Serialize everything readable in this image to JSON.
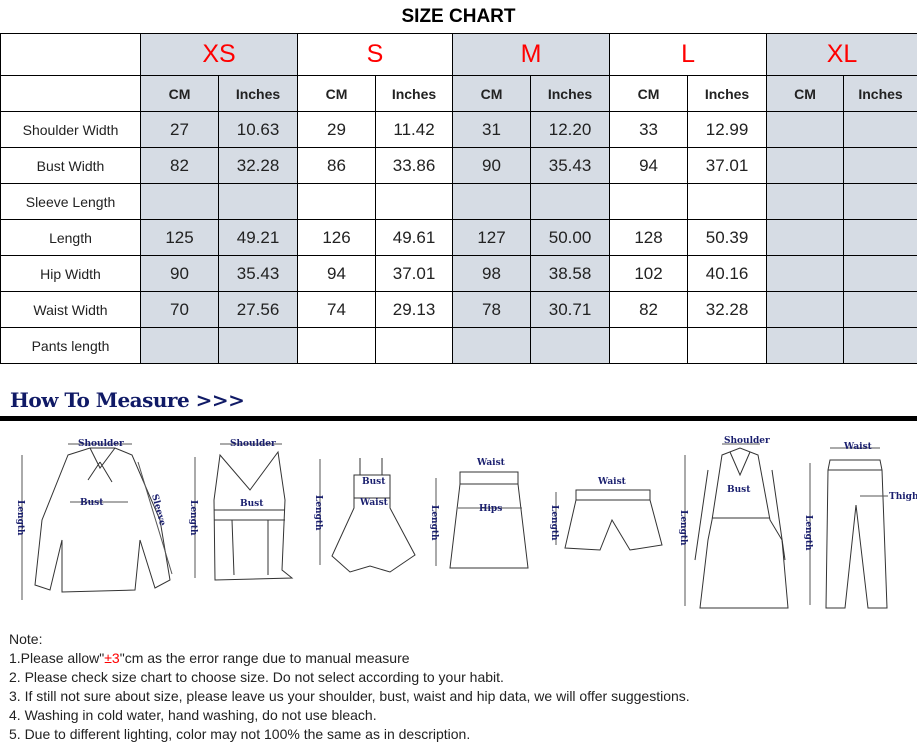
{
  "title": "SIZE CHART",
  "sizes": [
    "XS",
    "S",
    "M",
    "L",
    "XL"
  ],
  "units": [
    "CM",
    "Inches"
  ],
  "rows": [
    {
      "label": "Shoulder Width",
      "values": [
        "27",
        "10.63",
        "29",
        "11.42",
        "31",
        "12.20",
        "33",
        "12.99",
        "",
        ""
      ]
    },
    {
      "label": "Bust Width",
      "values": [
        "82",
        "32.28",
        "86",
        "33.86",
        "90",
        "35.43",
        "94",
        "37.01",
        "",
        ""
      ]
    },
    {
      "label": "Sleeve Length",
      "values": [
        "",
        "",
        "",
        "",
        "",
        "",
        "",
        "",
        "",
        ""
      ]
    },
    {
      "label": "Length",
      "values": [
        "125",
        "49.21",
        "126",
        "49.61",
        "127",
        "50.00",
        "128",
        "50.39",
        "",
        ""
      ]
    },
    {
      "label": "Hip Width",
      "values": [
        "90",
        "35.43",
        "94",
        "37.01",
        "98",
        "38.58",
        "102",
        "40.16",
        "",
        ""
      ]
    },
    {
      "label": "Waist Width",
      "values": [
        "70",
        "27.56",
        "74",
        "29.13",
        "78",
        "30.71",
        "82",
        "32.28",
        "",
        ""
      ]
    },
    {
      "label": "Pants length",
      "values": [
        "",
        "",
        "",
        "",
        "",
        "",
        "",
        "",
        "",
        ""
      ]
    }
  ],
  "measure": {
    "heading": "How To Measure >>>",
    "labels": {
      "shoulder": "Shoulder",
      "bust": "Bust",
      "sleeve": "Sleeve",
      "length": "Length",
      "waist": "Waist",
      "hips": "Hips",
      "thigh": "Thigh"
    }
  },
  "notes": {
    "heading": "Note:",
    "line1_pre": "1.Please allow\"",
    "line1_red": "±3",
    "line1_post": "\"cm as the error range due to manual measure",
    "line2": "2. Please check size chart to choose size. Do not select according to your habit.",
    "line3": "3. If still not sure about size, please leave us your shoulder, bust, waist and hip data, we will offer suggestions.",
    "line4": "4. Washing in cold water, hand washing, do not use bleach.",
    "line5": "5. Due to different lighting, color may not 100% the same as in description."
  },
  "colors": {
    "size_label": "#ff0000",
    "shaded_column": "#d6dce4",
    "heading": "#101a66"
  }
}
